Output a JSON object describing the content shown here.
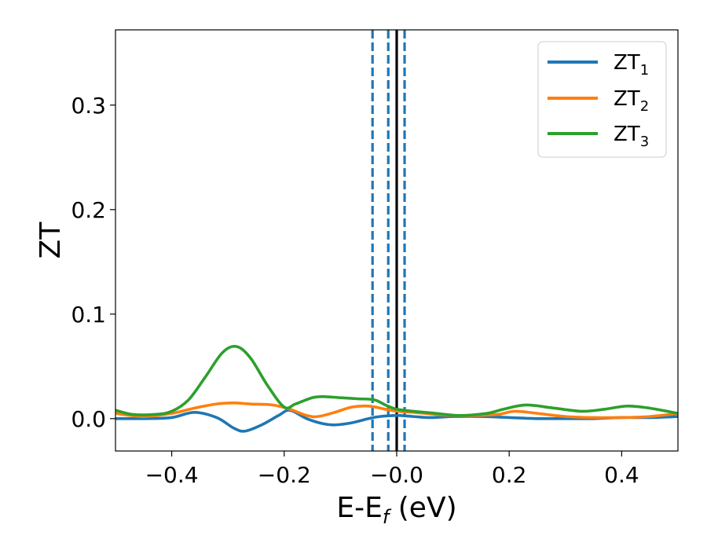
{
  "chart_data": {
    "type": "line",
    "xlabel_main": "E-E",
    "xlabel_sub": "f",
    "xlabel_unit": " (eV)",
    "ylabel": "ZT",
    "xlim": [
      -0.5,
      0.5
    ],
    "ylim": [
      -0.031,
      0.372
    ],
    "xticks": [
      -0.4,
      -0.2,
      0.0,
      0.2,
      0.4
    ],
    "xtick_labels": [
      "−0.4",
      "−0.2",
      "−0.0",
      "0.2",
      "0.4"
    ],
    "yticks": [
      0.0,
      0.1,
      0.2,
      0.3
    ],
    "ytick_labels": [
      "0.0",
      "0.1",
      "0.2",
      "0.3"
    ],
    "grid": false,
    "legend_position": "top-right",
    "vlines": [
      {
        "x": -0.043,
        "style": "dashed",
        "color": "#1f77b4"
      },
      {
        "x": -0.015,
        "style": "dashed",
        "color": "#1f77b4"
      },
      {
        "x": 0.0,
        "style": "solid",
        "color": "#000000"
      },
      {
        "x": 0.014,
        "style": "dashed",
        "color": "#1f77b4"
      }
    ],
    "series": [
      {
        "name_main": "ZT",
        "name_sub": "1",
        "color": "#1f77b4",
        "x": [
          -0.5,
          -0.45,
          -0.4,
          -0.36,
          -0.32,
          -0.29,
          -0.27,
          -0.24,
          -0.21,
          -0.19,
          -0.16,
          -0.13,
          -0.11,
          -0.08,
          -0.05,
          -0.03,
          0.0,
          0.03,
          0.06,
          0.1,
          0.15,
          0.2,
          0.25,
          0.3,
          0.35,
          0.4,
          0.45,
          0.5
        ],
        "y": [
          0.0,
          0.0,
          0.001,
          0.006,
          0.001,
          -0.009,
          -0.012,
          -0.006,
          0.003,
          0.008,
          0.0,
          -0.005,
          -0.006,
          -0.004,
          0.0,
          0.002,
          0.003,
          0.002,
          0.001,
          0.002,
          0.002,
          0.001,
          0.0,
          0.0,
          0.0,
          0.001,
          0.001,
          0.002
        ]
      },
      {
        "name_main": "ZT",
        "name_sub": "2",
        "color": "#ff7f0e",
        "x": [
          -0.5,
          -0.45,
          -0.4,
          -0.36,
          -0.32,
          -0.29,
          -0.26,
          -0.22,
          -0.19,
          -0.16,
          -0.14,
          -0.11,
          -0.08,
          -0.05,
          -0.02,
          0.0,
          0.03,
          0.07,
          0.1,
          0.14,
          0.18,
          0.21,
          0.25,
          0.3,
          0.35,
          0.4,
          0.45,
          0.5
        ],
        "y": [
          0.005,
          0.002,
          0.005,
          0.01,
          0.014,
          0.015,
          0.014,
          0.013,
          0.009,
          0.003,
          0.002,
          0.006,
          0.011,
          0.012,
          0.009,
          0.007,
          0.006,
          0.004,
          0.003,
          0.003,
          0.004,
          0.007,
          0.005,
          0.002,
          0.001,
          0.001,
          0.002,
          0.005
        ]
      },
      {
        "name_main": "ZT",
        "name_sub": "3",
        "color": "#2ca02c",
        "x": [
          -0.5,
          -0.47,
          -0.43,
          -0.4,
          -0.37,
          -0.34,
          -0.31,
          -0.285,
          -0.26,
          -0.23,
          -0.2,
          -0.18,
          -0.15,
          -0.13,
          -0.1,
          -0.07,
          -0.04,
          -0.02,
          0.0,
          0.03,
          0.07,
          0.11,
          0.16,
          0.19,
          0.23,
          0.28,
          0.33,
          0.37,
          0.41,
          0.45,
          0.5
        ],
        "y": [
          0.008,
          0.004,
          0.004,
          0.007,
          0.018,
          0.04,
          0.063,
          0.069,
          0.058,
          0.032,
          0.011,
          0.014,
          0.02,
          0.021,
          0.02,
          0.019,
          0.018,
          0.013,
          0.009,
          0.007,
          0.005,
          0.003,
          0.005,
          0.009,
          0.013,
          0.01,
          0.007,
          0.009,
          0.012,
          0.01,
          0.005
        ]
      }
    ]
  }
}
